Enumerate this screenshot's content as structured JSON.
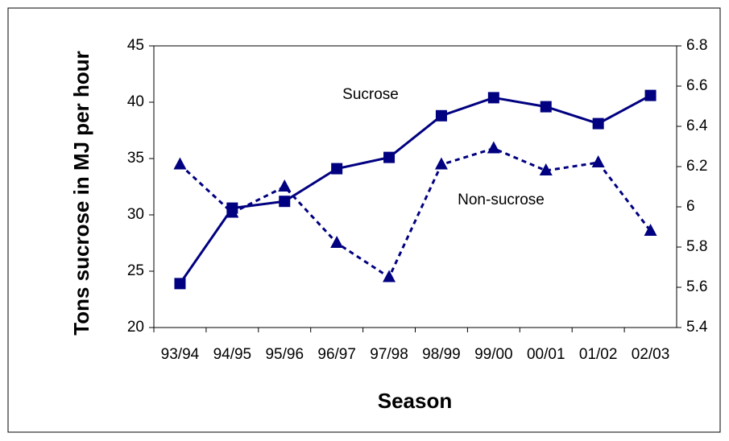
{
  "chart_data": {
    "type": "line",
    "x_label": "Season",
    "y_label": "Tons sucrose in MJ per hour",
    "categories": [
      "93/94",
      "94/95",
      "95/96",
      "96/97",
      "97/98",
      "98/99",
      "99/00",
      "00/01",
      "01/02",
      "02/03"
    ],
    "series": [
      {
        "name": "Sucrose",
        "color": "#000080",
        "marker": "square",
        "dash": "solid",
        "values": [
          23.9,
          30.6,
          31.2,
          34.1,
          35.1,
          38.8,
          40.4,
          39.6,
          38.1,
          40.6
        ]
      },
      {
        "name": "Non-sucrose",
        "color": "#000080",
        "marker": "triangle",
        "dash": "dotted",
        "axis": "y2",
        "values": [
          6.21,
          5.97,
          6.1,
          5.82,
          5.65,
          6.21,
          6.29,
          6.18,
          6.22,
          5.88
        ]
      }
    ],
    "ylim": [
      20,
      45
    ],
    "yticks": [
      20,
      25,
      30,
      35,
      40,
      45
    ],
    "y2lim": [
      5.4,
      6.8
    ],
    "y2ticks": [
      5.4,
      5.6,
      5.8,
      6,
      6.2,
      6.4,
      6.6,
      6.8
    ],
    "grid": false
  }
}
